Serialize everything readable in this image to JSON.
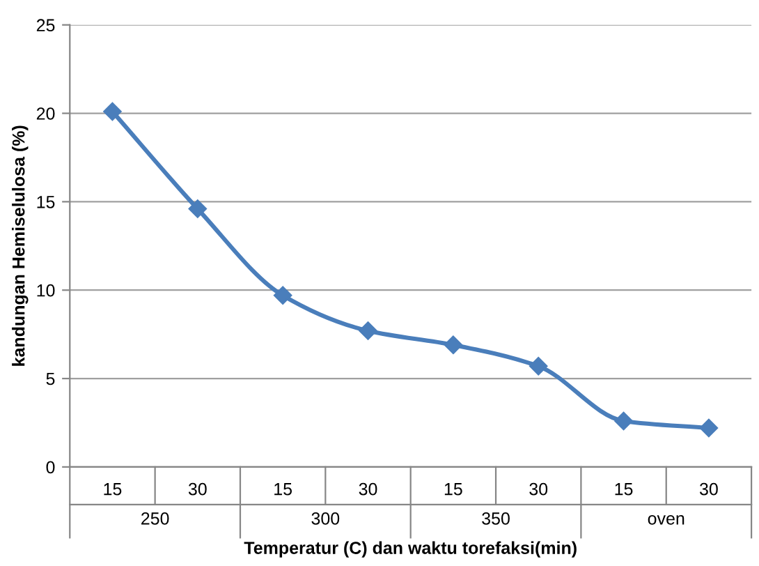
{
  "chart_data": {
    "type": "line",
    "xlabel": "Temperatur (C) dan waktu torefaksi(min)",
    "ylabel": "kandungan Hemiselulosa (%)",
    "categories": [
      "15",
      "30",
      "15",
      "30",
      "15",
      "30",
      "15",
      "30"
    ],
    "annotations": [
      "250",
      "300",
      "350",
      "oven"
    ],
    "series": [
      {
        "color": "#4a7ebb",
        "values": [
          20.1,
          14.6,
          9.7,
          7.7,
          6.9,
          5.7,
          2.6,
          2.2
        ]
      }
    ],
    "ylim": [
      0,
      25
    ],
    "yticks": [
      0,
      5,
      10,
      15,
      20,
      25
    ],
    "grid": "y",
    "marker": "diamond",
    "line_style": "solid",
    "legend": false
  }
}
